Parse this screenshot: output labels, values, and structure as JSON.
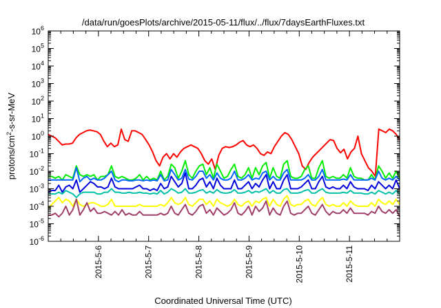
{
  "chart_data": {
    "type": "line",
    "title": "/data/run/goesPlots/archive/2015-05-11/flux/../flux/7daysEarthFluxes.txt",
    "xlabel": "Coordinated Universal Time (UTC)",
    "ylabel_parts": {
      "base": "protons/cm",
      "sup": "2",
      "rest": "-s-sr-MeV"
    },
    "y_scale": "log",
    "ylim_exponent": [
      -6,
      6
    ],
    "y_ticks": [
      {
        "base": "10",
        "exp": "-6",
        "value": 1e-06
      },
      {
        "base": "10",
        "exp": "-5",
        "value": 1e-05
      },
      {
        "base": "10",
        "exp": "-4",
        "value": 0.0001
      },
      {
        "base": "10",
        "exp": "-3",
        "value": 0.001
      },
      {
        "base": "10",
        "exp": "-2",
        "value": 0.01
      },
      {
        "base": "10",
        "exp": "-1",
        "value": 0.1
      },
      {
        "base": "10",
        "exp": "0",
        "value": 1
      },
      {
        "base": "10",
        "exp": "1",
        "value": 10.0
      },
      {
        "base": "10",
        "exp": "2",
        "value": 100.0
      },
      {
        "base": "10",
        "exp": "3",
        "value": 1000.0
      },
      {
        "base": "10",
        "exp": "4",
        "value": 10000.0
      },
      {
        "base": "10",
        "exp": "5",
        "value": 100000.0
      },
      {
        "base": "10",
        "exp": "6",
        "value": 1000000.0
      }
    ],
    "x_range": [
      "2015-05-05 00:00",
      "2015-05-12 00:00"
    ],
    "x_ticks": [
      {
        "label": "2015-5-6",
        "date": "2015-05-06"
      },
      {
        "label": "2015-5-7",
        "date": "2015-05-07"
      },
      {
        "label": "2015-5-8",
        "date": "2015-05-08"
      },
      {
        "label": "2015-5-9",
        "date": "2015-05-09"
      },
      {
        "label": "2015-5-10",
        "date": "2015-05-10"
      },
      {
        "label": "2015-5-11",
        "date": "2015-05-11"
      }
    ],
    "grid": false,
    "legend": "none",
    "series_exponent_unit": "log10 of flux",
    "series": [
      {
        "color": "#ff0000",
        "values": [
          0.1,
          0.0,
          -0.1,
          -0.3,
          -0.5,
          -0.45,
          -0.45,
          -0.4,
          -0.1,
          0.1,
          0.2,
          0.3,
          0.35,
          0.3,
          0.25,
          0.1,
          -0.3,
          -0.6,
          -0.4,
          -0.6,
          -0.5,
          0.4,
          -0.2,
          -0.3,
          0.3,
          0.3,
          0.2,
          0.1,
          -0.2,
          -0.5,
          -0.9,
          -1.4,
          -1.7,
          -1.2,
          -1.0,
          -1.3,
          -1.0,
          -1.2,
          -0.9,
          -0.7,
          -0.6,
          -0.5,
          -0.6,
          -0.7,
          -1.0,
          -1.4,
          -1.6,
          -1.3,
          -1.9,
          -1.1,
          -0.7,
          -0.6,
          -0.65,
          -0.6,
          -0.5,
          -0.35,
          -0.25,
          -0.5,
          -0.6,
          -0.5,
          -0.7,
          -1.0,
          -1.1,
          -0.9,
          -1.0,
          -0.6,
          -0.3,
          0.0,
          0.2,
          0.1,
          -0.2,
          -0.6,
          -1.0,
          -1.7,
          -1.9,
          -1.5,
          -1.2,
          -1.0,
          -0.8,
          -0.6,
          -0.4,
          -0.2,
          -0.25,
          -0.7,
          -0.95,
          -0.75,
          -1.3,
          -0.9,
          -0.7,
          0.0,
          -1.0,
          -1.4,
          -1.8,
          -2.0,
          -2.3,
          0.4,
          0.3,
          0.2,
          0.4,
          0.3,
          0.1,
          -0.2
        ]
      },
      {
        "color": "#00ee00",
        "values": [
          -2.3,
          -2.3,
          -2.4,
          -2.3,
          -2.5,
          -2.2,
          -2.3,
          -2.4,
          -1.7,
          -2.2,
          -2.3,
          -2.2,
          -2.3,
          -2.2,
          -2.5,
          -2.3,
          -2.3,
          -2.2,
          -1.7,
          -2.3,
          -2.4,
          -2.3,
          -2.4,
          -2.5,
          -2.5,
          -2.4,
          -2.2,
          -2.5,
          -2.3,
          -2.5,
          -2.4,
          -2.5,
          -2.0,
          -2.5,
          -2.3,
          -1.6,
          -1.8,
          -2.4,
          -2.0,
          -1.4,
          -2.2,
          -2.4,
          -2.0,
          -1.7,
          -1.6,
          -2.2,
          -1.8,
          -2.4,
          -1.6,
          -2.0,
          -2.4,
          -2.3,
          -1.9,
          -1.6,
          -2.3,
          -2.4,
          -2.2,
          -1.8,
          -2.4,
          -1.8,
          -2.2,
          -1.7,
          -1.5,
          -2.4,
          -1.8,
          -2.3,
          -2.4,
          -1.6,
          -1.4,
          -2.3,
          -2.4,
          -2.4,
          -2.3,
          -1.9,
          -1.7,
          -2.4,
          -2.4,
          -1.8,
          -1.4,
          -2.3,
          -2.4,
          -2.3,
          -2.4,
          -2.4,
          -2.2,
          -2.4,
          -1.8,
          -2.3,
          -2.4,
          -2.4,
          -2.5,
          -2.5,
          -2.2,
          -2.5,
          -1.7,
          -2.0,
          -2.4,
          -2.1,
          -2.4,
          -2.0,
          -2.4
        ]
      },
      {
        "color": "#0066ff",
        "values": [
          -2.5,
          -2.5,
          -2.5,
          -2.5,
          -2.5,
          -2.5,
          -2.5,
          -2.5,
          -1.8,
          -2.6,
          -2.4,
          -2.3,
          -2.5,
          -2.4,
          -2.5,
          -2.5,
          -2.4,
          -2.2,
          -2.0,
          -2.5,
          -2.6,
          -2.5,
          -2.5,
          -2.55,
          -2.55,
          -2.5,
          -2.5,
          -2.55,
          -2.5,
          -2.55,
          -2.5,
          -2.55,
          -2.2,
          -2.55,
          -2.5,
          -1.9,
          -2.2,
          -2.5,
          -2.4,
          -1.9,
          -2.45,
          -2.5,
          -2.3,
          -2.0,
          -2.0,
          -2.4,
          -2.2,
          -2.5,
          -2.1,
          -2.4,
          -2.5,
          -2.5,
          -2.4,
          -2.0,
          -2.5,
          -2.5,
          -2.4,
          -2.2,
          -2.5,
          -2.4,
          -2.45,
          -2.1,
          -2.0,
          -2.5,
          -2.3,
          -2.5,
          -2.5,
          -2.1,
          -1.9,
          -2.5,
          -2.5,
          -2.5,
          -2.5,
          -2.4,
          -2.2,
          -2.5,
          -2.5,
          -2.3,
          -1.9,
          -2.5,
          -2.5,
          -2.5,
          -2.5,
          -2.5,
          -2.45,
          -2.5,
          -2.2,
          -2.5,
          -2.5,
          -2.5,
          -2.5,
          -2.5,
          -2.4,
          -2.5,
          -2.0,
          -2.4,
          -2.5,
          -2.4,
          -2.5,
          -2.3,
          -2.5
        ]
      },
      {
        "color": "#0000dd",
        "values": [
          -3.2,
          -3.1,
          -3.1,
          -2.8,
          -3.2,
          -2.9,
          -2.8,
          -3.0,
          -2.5,
          -3.2,
          -3.0,
          -2.8,
          -2.6,
          -2.7,
          -2.9,
          -2.9,
          -3.0,
          -2.9,
          -2.4,
          -2.9,
          -3.0,
          -3.0,
          -3.0,
          -3.0,
          -3.0,
          -2.9,
          -2.8,
          -3.0,
          -3.0,
          -3.1,
          -3.0,
          -3.1,
          -2.7,
          -3.0,
          -2.9,
          -2.3,
          -2.6,
          -2.9,
          -2.7,
          -2.1,
          -3.0,
          -3.0,
          -2.8,
          -2.5,
          -2.4,
          -2.9,
          -2.6,
          -3.0,
          -2.4,
          -2.8,
          -3.0,
          -3.0,
          -3.0,
          -2.5,
          -3.0,
          -3.0,
          -2.8,
          -2.6,
          -3.0,
          -2.7,
          -2.9,
          -2.5,
          -2.2,
          -3.0,
          -2.6,
          -3.0,
          -3.0,
          -2.5,
          -2.2,
          -3.0,
          -3.0,
          -3.0,
          -2.9,
          -2.7,
          -2.5,
          -3.0,
          -3.0,
          -2.6,
          -2.3,
          -2.9,
          -3.0,
          -2.9,
          -3.0,
          -3.0,
          -2.8,
          -3.0,
          -2.6,
          -2.9,
          -3.0,
          -3.0,
          -3.0,
          -3.1,
          -2.8,
          -3.0,
          -2.6,
          -2.8,
          -3.0,
          -2.8,
          -3.0,
          -2.5,
          -3.0
        ]
      },
      {
        "color": "#00c0a8",
        "values": [
          -3.3,
          -3.3,
          -3.3,
          -3.2,
          -3.3,
          -3.1,
          -3.2,
          -3.3,
          -3.5,
          -3.3,
          -3.2,
          -3.2,
          -3.2,
          -3.2,
          -3.3,
          -3.3,
          -3.2,
          -3.2,
          -3.0,
          -3.2,
          -3.2,
          -3.25,
          -3.25,
          -3.2,
          -3.25,
          -3.25,
          -3.2,
          -3.25,
          -3.25,
          -3.3,
          -3.25,
          -3.3,
          -3.1,
          -3.3,
          -3.2,
          -3.0,
          -3.1,
          -3.25,
          -3.2,
          -3.0,
          -3.25,
          -3.25,
          -3.2,
          -3.1,
          -3.05,
          -3.25,
          -3.15,
          -3.25,
          -3.05,
          -3.2,
          -3.25,
          -3.25,
          -3.2,
          -3.05,
          -3.25,
          -3.25,
          -3.2,
          -3.1,
          -3.25,
          -3.15,
          -3.2,
          -3.1,
          -3.0,
          -3.25,
          -3.1,
          -3.25,
          -3.25,
          -3.05,
          -3.0,
          -3.25,
          -3.25,
          -3.25,
          -3.2,
          -3.1,
          -3.05,
          -3.25,
          -3.25,
          -3.1,
          -3.0,
          -3.2,
          -3.25,
          -3.25,
          -3.25,
          -3.25,
          -3.2,
          -3.25,
          -3.1,
          -3.25,
          -3.25,
          -3.25,
          -3.3,
          -3.3,
          -3.2,
          -3.3,
          -3.1,
          -3.2,
          -3.3,
          -3.2,
          -3.3,
          -3.1,
          -3.3
        ]
      },
      {
        "color": "#ffff00",
        "values": [
          -4.1,
          -3.9,
          -3.7,
          -3.5,
          -3.8,
          -3.6,
          -3.7,
          -4.0,
          -3.6,
          -3.9,
          -4.0,
          -3.9,
          -3.8,
          -3.8,
          -3.9,
          -4.0,
          -4.0,
          -3.9,
          -3.6,
          -4.0,
          -4.0,
          -4.0,
          -4.0,
          -4.0,
          -4.0,
          -4.0,
          -3.9,
          -4.0,
          -4.0,
          -4.0,
          -4.0,
          -4.0,
          -3.9,
          -4.0,
          -3.8,
          -3.5,
          -3.8,
          -3.9,
          -3.8,
          -3.5,
          -3.9,
          -4.0,
          -3.8,
          -3.6,
          -3.6,
          -3.9,
          -3.7,
          -4.0,
          -3.6,
          -3.8,
          -3.9,
          -4.0,
          -3.9,
          -3.6,
          -3.9,
          -4.0,
          -3.8,
          -3.7,
          -4.0,
          -3.7,
          -3.8,
          -3.6,
          -3.5,
          -4.0,
          -3.6,
          -3.9,
          -4.0,
          -3.6,
          -3.4,
          -3.9,
          -4.0,
          -3.9,
          -3.9,
          -3.7,
          -3.6,
          -3.9,
          -4.0,
          -3.7,
          -3.5,
          -3.9,
          -4.0,
          -3.9,
          -4.0,
          -4.0,
          -3.8,
          -4.0,
          -3.7,
          -3.9,
          -4.0,
          -4.0,
          -4.0,
          -4.0,
          -3.8,
          -4.0,
          -3.6,
          -3.8,
          -3.9,
          -3.7,
          -3.9,
          -3.6,
          -3.9
        ]
      },
      {
        "color": "#a0406a",
        "values": [
          -4.5,
          -4.5,
          -4.4,
          -4.6,
          -4.4,
          -4.0,
          -4.5,
          -4.2,
          -3.6,
          -4.5,
          -4.2,
          -3.8,
          -4.3,
          -4.1,
          -4.4,
          -4.4,
          -4.3,
          -4.4,
          -4.5,
          -4.3,
          -4.5,
          -4.2,
          -4.5,
          -4.4,
          -4.5,
          -4.5,
          -4.3,
          -4.5,
          -4.5,
          -4.5,
          -4.5,
          -4.5,
          -4.4,
          -4.5,
          -4.4,
          -4.0,
          -4.4,
          -4.5,
          -4.2,
          -3.9,
          -4.4,
          -4.5,
          -4.3,
          -4.0,
          -3.9,
          -4.4,
          -4.2,
          -4.5,
          -4.1,
          -4.3,
          -4.5,
          -4.4,
          -4.2,
          -3.8,
          -4.4,
          -4.5,
          -4.3,
          -4.0,
          -4.5,
          -4.0,
          -4.3,
          -4.1,
          -3.7,
          -4.5,
          -4.1,
          -4.4,
          -4.5,
          -4.0,
          -3.7,
          -4.4,
          -4.5,
          -4.4,
          -4.4,
          -4.2,
          -4.0,
          -4.4,
          -4.5,
          -4.2,
          -3.9,
          -4.3,
          -4.5,
          -4.3,
          -4.4,
          -4.4,
          -4.2,
          -4.4,
          -4.1,
          -4.4,
          -4.4,
          -4.4,
          -4.4,
          -4.5,
          -4.3,
          -4.4,
          -4.0,
          -4.3,
          -4.4,
          -4.2,
          -4.4,
          -4.2,
          -4.6
        ]
      }
    ]
  }
}
